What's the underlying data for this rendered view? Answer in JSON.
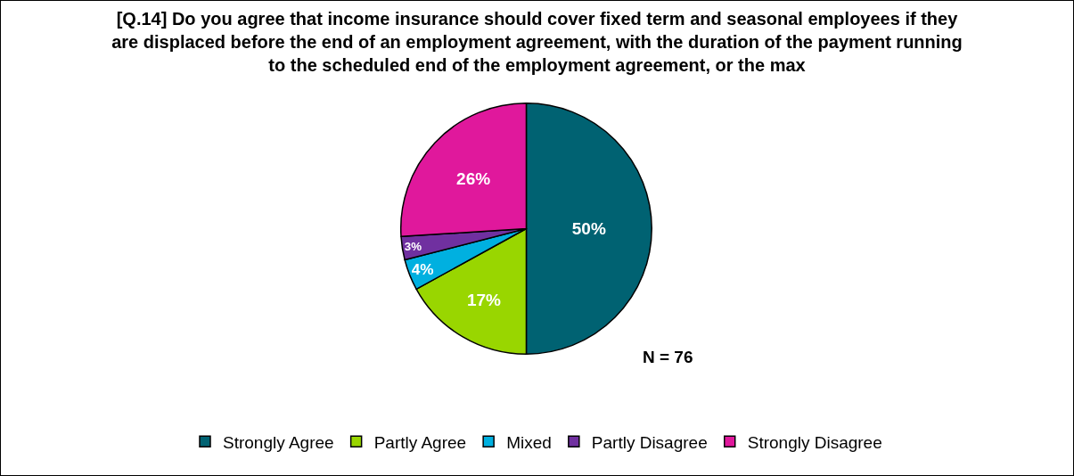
{
  "chart_data": {
    "type": "pie",
    "title": "[Q.14] Do you agree that income insurance should cover fixed term and seasonal employees if they are displaced before the end of an employment agreement, with the duration of the payment running to the scheduled end of the employment agreement, or the max",
    "categories": [
      "Strongly Agree",
      "Partly Agree",
      "Mixed",
      "Partly Disagree",
      "Strongly Disagree"
    ],
    "values": [
      50,
      17,
      4,
      3,
      26
    ],
    "value_labels": [
      "50%",
      "17%",
      "4%",
      "3%",
      "26%"
    ],
    "colors": [
      "#006272",
      "#99d600",
      "#00b0e0",
      "#7030a0",
      "#e0189c"
    ],
    "legend": "bottom",
    "annotations": [
      "N = 76"
    ]
  }
}
